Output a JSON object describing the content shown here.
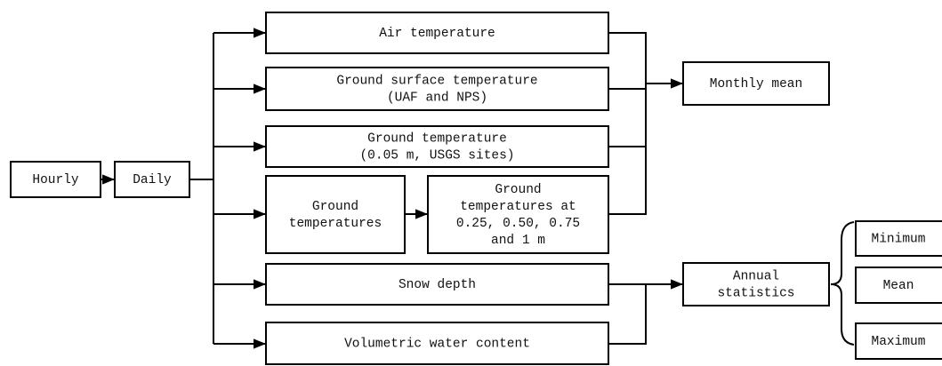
{
  "nodes": [
    {
      "label": [
        "Hourly"
      ]
    },
    {
      "label": [
        "Daily"
      ]
    },
    {
      "label": [
        "Air temperature"
      ]
    },
    {
      "label": [
        "Ground surface temperature",
        "(UAF and NPS)"
      ]
    },
    {
      "label": [
        "Ground temperature",
        "(0.05 m, USGS sites)"
      ]
    },
    {
      "label": [
        "Ground",
        "temperatures"
      ]
    },
    {
      "label": [
        "Ground",
        "temperatures at",
        "0.25, 0.50, 0.75",
        "and 1 m"
      ]
    },
    {
      "label": [
        "Snow depth"
      ]
    },
    {
      "label": [
        "Volumetric water content"
      ]
    },
    {
      "label": [
        "Monthly mean"
      ]
    },
    {
      "label": [
        "Annual",
        "statistics"
      ]
    },
    {
      "label": [
        "Minimum"
      ]
    },
    {
      "label": [
        "Mean"
      ]
    },
    {
      "label": [
        "Maximum"
      ]
    }
  ]
}
